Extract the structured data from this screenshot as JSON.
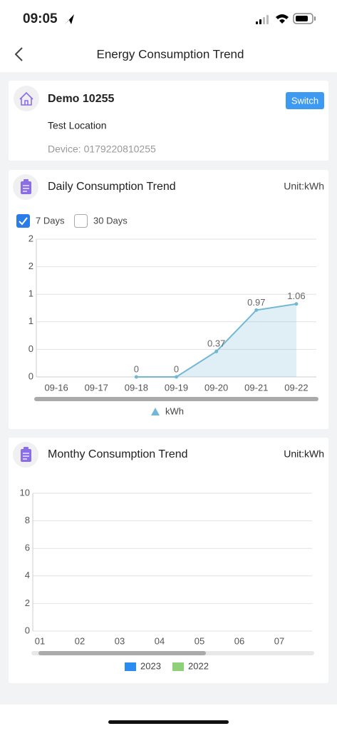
{
  "status_bar": {
    "time": "09:05"
  },
  "header": {
    "title": "Energy Consumption Trend"
  },
  "location": {
    "name": "Demo 10255",
    "button": "Switch",
    "address": "Test Location",
    "device": "Device: 0179220810255"
  },
  "daily_options": [
    {
      "label": "7 Days",
      "checked": true
    },
    {
      "label": "30 Days",
      "checked": false
    }
  ],
  "chart_data": [
    {
      "type": "line",
      "title": "Daily Consumption Trend",
      "unit_label": "Unit:kWh",
      "categories": [
        "09-16",
        "09-17",
        "09-18",
        "09-19",
        "09-20",
        "09-21",
        "09-22"
      ],
      "series": [
        {
          "name": "kWh",
          "color": "#72b8d4",
          "values": [
            null,
            null,
            0,
            0,
            0.37,
            0.97,
            1.06
          ]
        }
      ],
      "ylim": [
        0,
        2
      ],
      "yticks": [
        0,
        {
          "value": 0.4,
          "label": "0"
        },
        {
          "value": 0.8,
          "label": "1"
        },
        {
          "value": 1.2,
          "label": "1"
        },
        {
          "value": 1.6,
          "label": "2"
        },
        2
      ],
      "grid": true,
      "area": true,
      "legend": "bottom"
    },
    {
      "type": "bar",
      "title": "Monthy Consumption Trend",
      "unit_label": "Unit:kWh",
      "categories": [
        "01",
        "02",
        "03",
        "04",
        "05",
        "06",
        "07"
      ],
      "series": [
        {
          "name": "2023",
          "color": "#2a8cf0",
          "values": [
            null,
            null,
            null,
            null,
            null,
            null,
            null
          ]
        },
        {
          "name": "2022",
          "color": "#8fd17a",
          "values": [
            null,
            null,
            null,
            null,
            null,
            null,
            null
          ]
        }
      ],
      "ylim": [
        0,
        10
      ],
      "yticks": [
        0,
        2,
        4,
        6,
        8,
        10
      ],
      "grid": true,
      "legend": "bottom"
    }
  ]
}
